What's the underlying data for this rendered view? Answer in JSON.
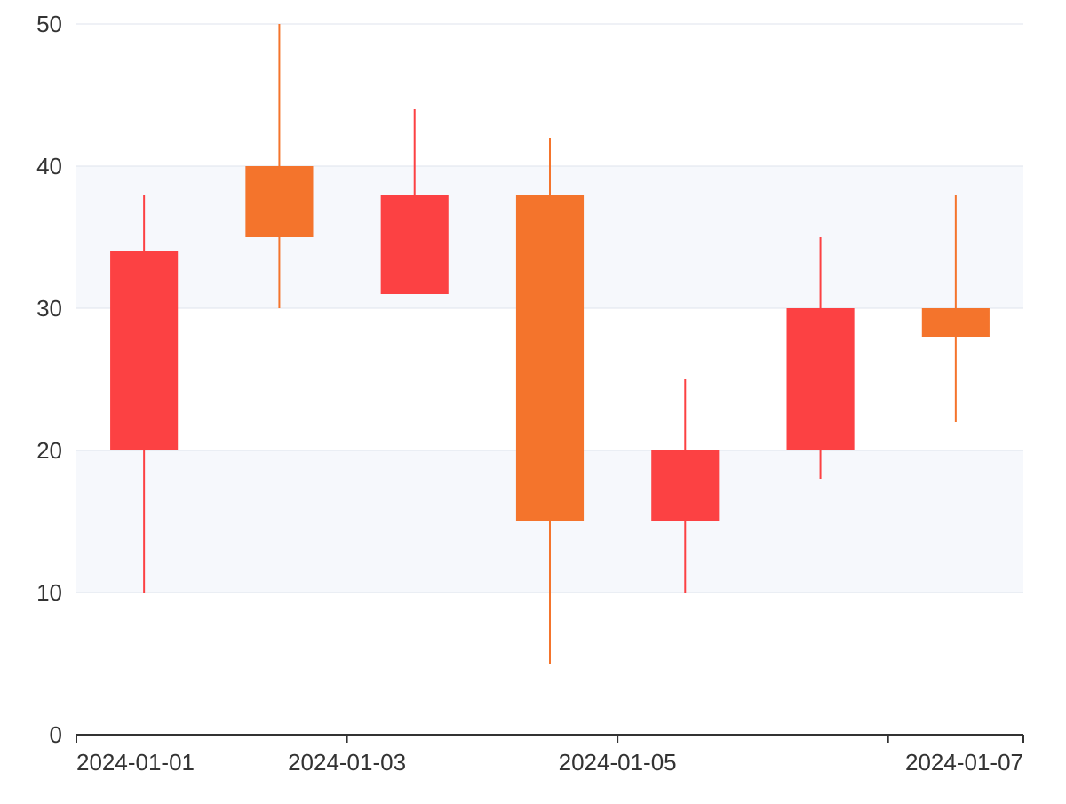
{
  "chart_data": {
    "type": "candlestick",
    "title": "",
    "xlabel": "",
    "ylabel": "",
    "ylim": [
      0,
      50
    ],
    "y_ticks": [
      0,
      10,
      20,
      30,
      40,
      50
    ],
    "x_tick_labels": [
      "2024-01-01",
      "2024-01-03",
      "2024-01-05",
      "2024-01-07"
    ],
    "grid": true,
    "banded_background": true,
    "colors": {
      "increasing": "#f4742c",
      "decreasing": "#fc4143",
      "grid": "#dfe3ec",
      "band": "#f6f8fc",
      "axis": "#333333"
    },
    "candles": [
      {
        "date": "2024-01-01",
        "open": 34,
        "close": 20,
        "high": 38,
        "low": 10
      },
      {
        "date": "2024-01-02",
        "open": 35,
        "close": 40,
        "high": 50,
        "low": 30
      },
      {
        "date": "2024-01-03",
        "open": 38,
        "close": 31,
        "high": 44,
        "low": 31
      },
      {
        "date": "2024-01-04",
        "open": 15,
        "close": 38,
        "high": 42,
        "low": 5
      },
      {
        "date": "2024-01-05",
        "open": 20,
        "close": 15,
        "high": 25,
        "low": 10
      },
      {
        "date": "2024-01-06",
        "open": 30,
        "close": 20,
        "high": 35,
        "low": 18
      },
      {
        "date": "2024-01-07",
        "open": 28,
        "close": 30,
        "high": 38,
        "low": 22
      }
    ]
  }
}
